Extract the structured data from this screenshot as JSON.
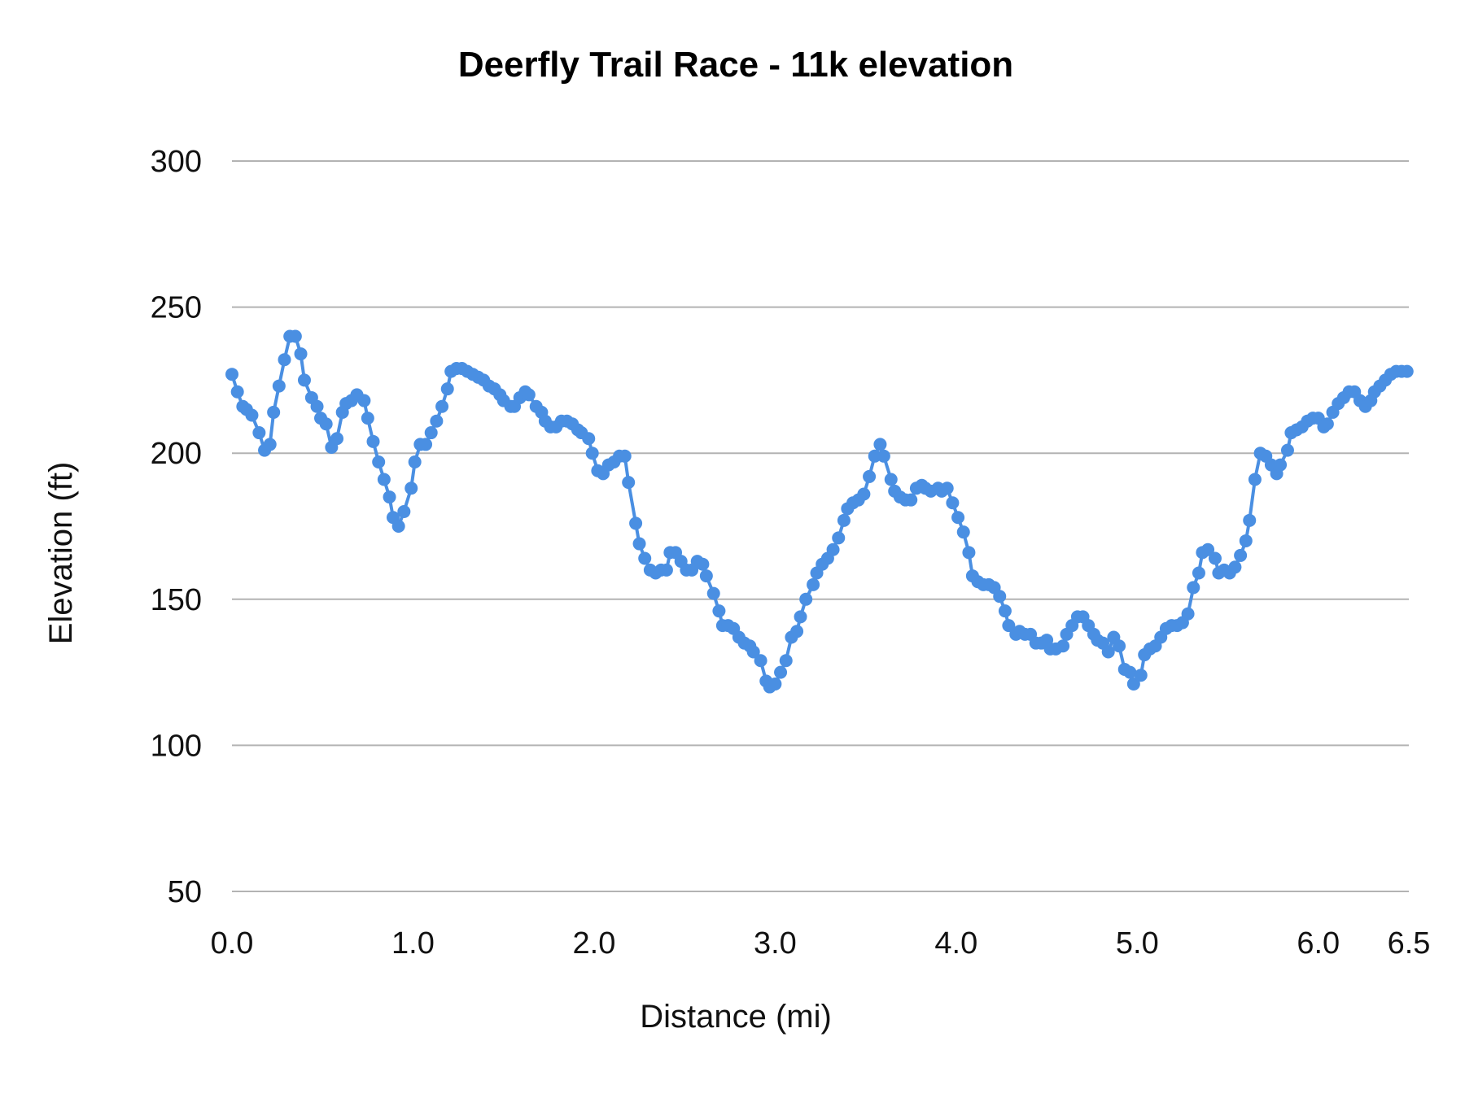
{
  "chart_data": {
    "type": "line",
    "title": "Deerfly Trail Race - 11k elevation",
    "xlabel": "Distance (mi)",
    "ylabel": "Elevation (ft)",
    "xlim": [
      0,
      6.5
    ],
    "ylim": [
      50,
      300
    ],
    "x_ticks": [
      "0.0",
      "1.0",
      "2.0",
      "3.0",
      "4.0",
      "5.0",
      "6.0",
      "6.5"
    ],
    "y_ticks": [
      "300",
      "250",
      "200",
      "150",
      "100",
      "50"
    ],
    "grid": "horizontal",
    "legend": "none",
    "markers": true,
    "color": "#4A8FE2",
    "series": [
      {
        "x": [
          0.0,
          0.03,
          0.06,
          0.08,
          0.11,
          0.15,
          0.18,
          0.21,
          0.23,
          0.26,
          0.29,
          0.32,
          0.35,
          0.38,
          0.4,
          0.44,
          0.47,
          0.49,
          0.52,
          0.55,
          0.58,
          0.61,
          0.63,
          0.66,
          0.69,
          0.73,
          0.75,
          0.78,
          0.81,
          0.84,
          0.87,
          0.89,
          0.92,
          0.95,
          0.99,
          1.01,
          1.04,
          1.07,
          1.1,
          1.13,
          1.16,
          1.19,
          1.21,
          1.24,
          1.27,
          1.3,
          1.33,
          1.36,
          1.39,
          1.42,
          1.45,
          1.48,
          1.5,
          1.54,
          1.56,
          1.59,
          1.62,
          1.64,
          1.68,
          1.71,
          1.73,
          1.76,
          1.79,
          1.82,
          1.85,
          1.88,
          1.91,
          1.93,
          1.97,
          1.99,
          2.02,
          2.05,
          2.08,
          2.11,
          2.14,
          2.17,
          2.19,
          2.23,
          2.25,
          2.28,
          2.31,
          2.34,
          2.37,
          2.4,
          2.42,
          2.45,
          2.48,
          2.51,
          2.54,
          2.57,
          2.6,
          2.62,
          2.66,
          2.69,
          2.71,
          2.74,
          2.77,
          2.8,
          2.83,
          2.86,
          2.88,
          2.92,
          2.95,
          2.97,
          3.0,
          3.03,
          3.06,
          3.09,
          3.12,
          3.14,
          3.17,
          3.21,
          3.23,
          3.26,
          3.29,
          3.32,
          3.35,
          3.38,
          3.4,
          3.43,
          3.46,
          3.49,
          3.52,
          3.55,
          3.58,
          3.6,
          3.64,
          3.66,
          3.69,
          3.72,
          3.75,
          3.78,
          3.81,
          3.83,
          3.86,
          3.9,
          3.92,
          3.95,
          3.98,
          4.01,
          4.04,
          4.07,
          4.09,
          4.12,
          4.15,
          4.18,
          4.21,
          4.24,
          4.27,
          4.29,
          4.33,
          4.35,
          4.38,
          4.41,
          4.44,
          4.47,
          4.5,
          4.52,
          4.55,
          4.59,
          4.61,
          4.64,
          4.67,
          4.7,
          4.73,
          4.76,
          4.78,
          4.81,
          4.84,
          4.87,
          4.9,
          4.93,
          4.96,
          4.98,
          5.02,
          5.04,
          5.07,
          5.1,
          5.13,
          5.16,
          5.19,
          5.22,
          5.25,
          5.28,
          5.31,
          5.34,
          5.36,
          5.39,
          5.43,
          5.45,
          5.48,
          5.51,
          5.54,
          5.57,
          5.6,
          5.62,
          5.65,
          5.68,
          5.71,
          5.74,
          5.77,
          5.79,
          5.83,
          5.85,
          5.88,
          5.91,
          5.94,
          5.97,
          6.0,
          6.03,
          6.05,
          6.08,
          6.11,
          6.14,
          6.17,
          6.2,
          6.23,
          6.26,
          6.29,
          6.31,
          6.34,
          6.37,
          6.4,
          6.43,
          6.46,
          6.49
        ],
        "y": [
          227,
          221,
          216,
          215,
          213,
          207,
          201,
          203,
          214,
          223,
          232,
          240,
          240,
          234,
          225,
          219,
          216,
          212,
          210,
          202,
          205,
          214,
          217,
          218,
          220,
          218,
          212,
          204,
          197,
          191,
          185,
          178,
          175,
          180,
          188,
          197,
          203,
          203,
          207,
          211,
          216,
          222,
          228,
          229,
          229,
          228,
          227,
          226,
          225,
          223,
          222,
          220,
          218,
          216,
          216,
          219,
          221,
          220,
          216,
          214,
          211,
          209,
          209,
          211,
          211,
          210,
          208,
          207,
          205,
          200,
          194,
          193,
          196,
          197,
          199,
          199,
          190,
          176,
          169,
          164,
          160,
          159,
          160,
          160,
          166,
          166,
          163,
          160,
          160,
          163,
          162,
          158,
          152,
          146,
          141,
          141,
          140,
          137,
          135,
          134,
          132,
          129,
          122,
          120,
          121,
          125,
          129,
          137,
          139,
          144,
          150,
          155,
          159,
          162,
          164,
          167,
          171,
          177,
          181,
          183,
          184,
          186,
          192,
          199,
          203,
          199,
          191,
          187,
          185,
          184,
          184,
          188,
          189,
          188,
          187,
          188,
          187,
          188,
          183,
          178,
          173,
          166,
          158,
          156,
          155,
          155,
          154,
          151,
          146,
          141,
          138,
          139,
          138,
          138,
          135,
          135,
          136,
          133,
          133,
          134,
          138,
          141,
          144,
          144,
          141,
          138,
          136,
          135,
          132,
          137,
          134,
          126,
          125,
          121,
          124,
          131,
          133,
          134,
          137,
          140,
          141,
          141,
          142,
          145,
          154,
          159,
          166,
          167,
          164,
          159,
          160,
          159,
          161,
          165,
          170,
          177,
          191,
          200,
          199,
          196,
          193,
          196,
          201,
          207,
          208,
          209,
          211,
          212,
          212,
          209,
          210,
          214,
          217,
          219,
          221,
          221,
          218,
          216,
          218,
          221,
          223,
          225,
          227,
          228,
          228,
          228
        ]
      }
    ]
  }
}
